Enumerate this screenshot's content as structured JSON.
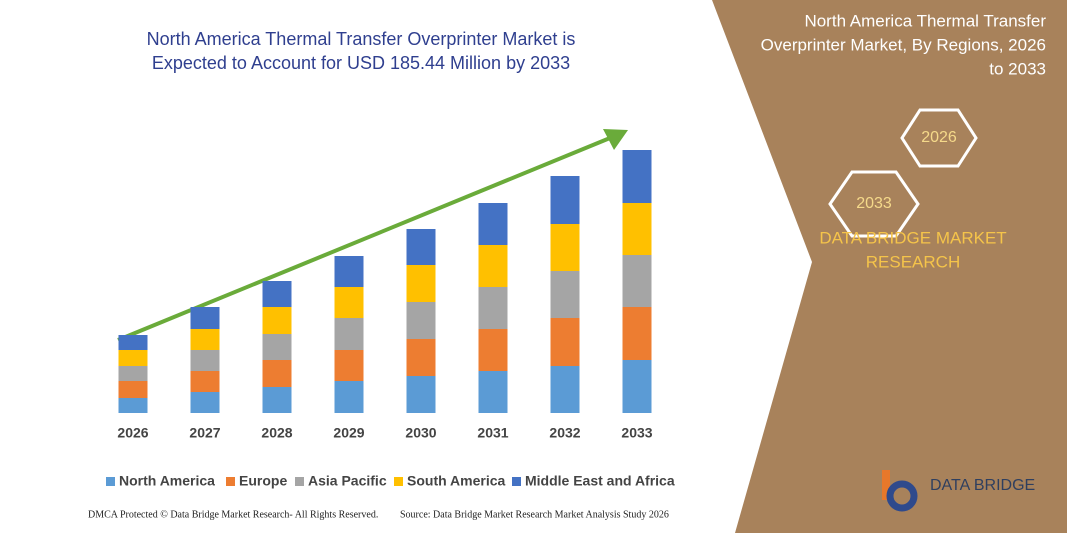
{
  "chart_data": {
    "type": "stacked_bar",
    "title": [
      "North America Thermal Transfer Overprinter Market is",
      "Expected to Account for USD 185.44 Million by 2033"
    ],
    "side_title": [
      "North America Thermal Transfer",
      "Overprinter Market, By Regions, 2026",
      "to 2033"
    ],
    "badges": [
      "2033",
      "2026"
    ],
    "brand": [
      "DATA BRIDGE MARKET",
      "RESEARCH"
    ],
    "logo": "DATA BRIDGE",
    "footer_left": "DMCA Protected © Data Bridge Market Research- All Rights Reserved.",
    "footer_right": "Source: Data Bridge Market Research  Market Analysis Study 2026",
    "categories": [
      "2026",
      "2027",
      "2028",
      "2029",
      "2030",
      "2031",
      "2032",
      "2033"
    ],
    "series": [
      {
        "name": "North America",
        "color": "#5b9bd5",
        "values": [
          15,
          21,
          26,
          32,
          37,
          42,
          47,
          53
        ]
      },
      {
        "name": "Europe",
        "color": "#ed7d31",
        "values": [
          17,
          21,
          27,
          31,
          37,
          42,
          48,
          53
        ]
      },
      {
        "name": "Asia Pacific",
        "color": "#a5a5a5",
        "values": [
          15,
          21,
          26,
          32,
          37,
          42,
          47,
          52
        ]
      },
      {
        "name": "South America",
        "color": "#ffc000",
        "values": [
          16,
          21,
          27,
          31,
          37,
          42,
          47,
          52
        ]
      },
      {
        "name": "Middle East and Africa",
        "color": "#4472c4",
        "values": [
          15,
          22,
          26,
          31,
          36,
          42,
          48,
          53
        ]
      }
    ]
  }
}
